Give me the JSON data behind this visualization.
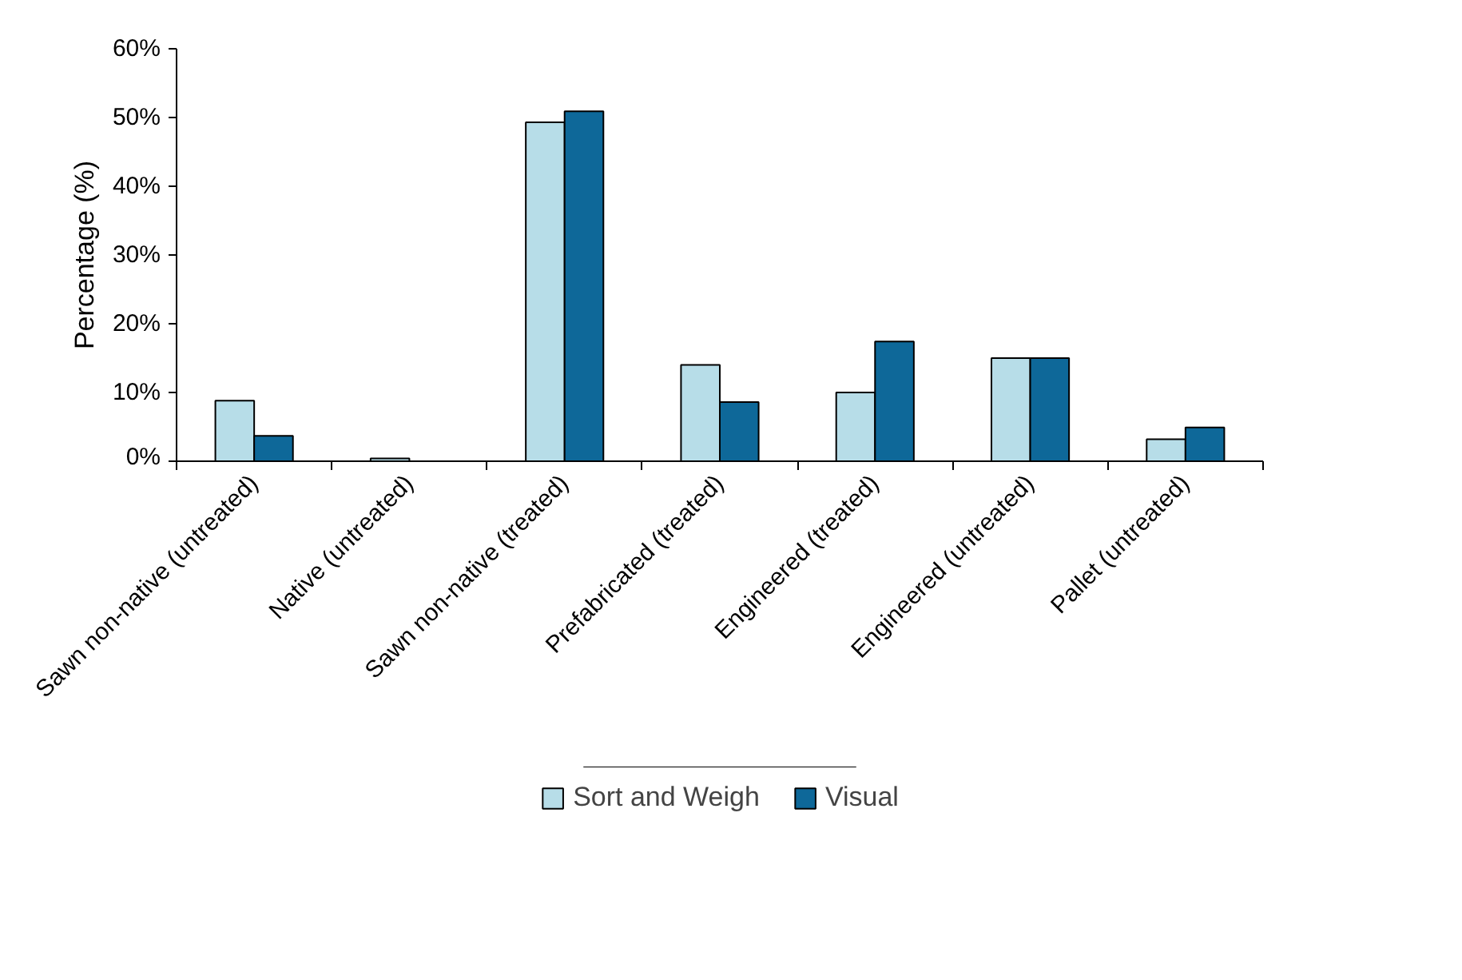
{
  "chart_data": {
    "type": "bar",
    "ylabel": "Percentage (%)",
    "categories": [
      "Sawn non-native (untreated)",
      "Native (untreated)",
      "Sawn non-native (treated)",
      "Prefabricated (treated)",
      "Engineered (treated)",
      "Engineered (untreated)",
      "Pallet (untreated)"
    ],
    "series": [
      {
        "name": "Sort and Weigh",
        "color": "#b7dde8",
        "values": [
          8.8,
          0.4,
          49.3,
          14.0,
          10.0,
          15.0,
          3.2
        ]
      },
      {
        "name": "Visual",
        "color": "#0e6899",
        "values": [
          3.7,
          null,
          50.9,
          8.6,
          17.4,
          15.0,
          4.9
        ]
      }
    ],
    "ylim": [
      0,
      60
    ],
    "yticks": [
      {
        "value": 0,
        "label": "0%"
      },
      {
        "value": 10,
        "label": "10%"
      },
      {
        "value": 20,
        "label": "20%"
      },
      {
        "value": 30,
        "label": "30%"
      },
      {
        "value": 40,
        "label": "40%"
      },
      {
        "value": 50,
        "label": "50%"
      },
      {
        "value": 60,
        "label": "60%"
      }
    ],
    "grid": false,
    "legend": "bottom"
  }
}
